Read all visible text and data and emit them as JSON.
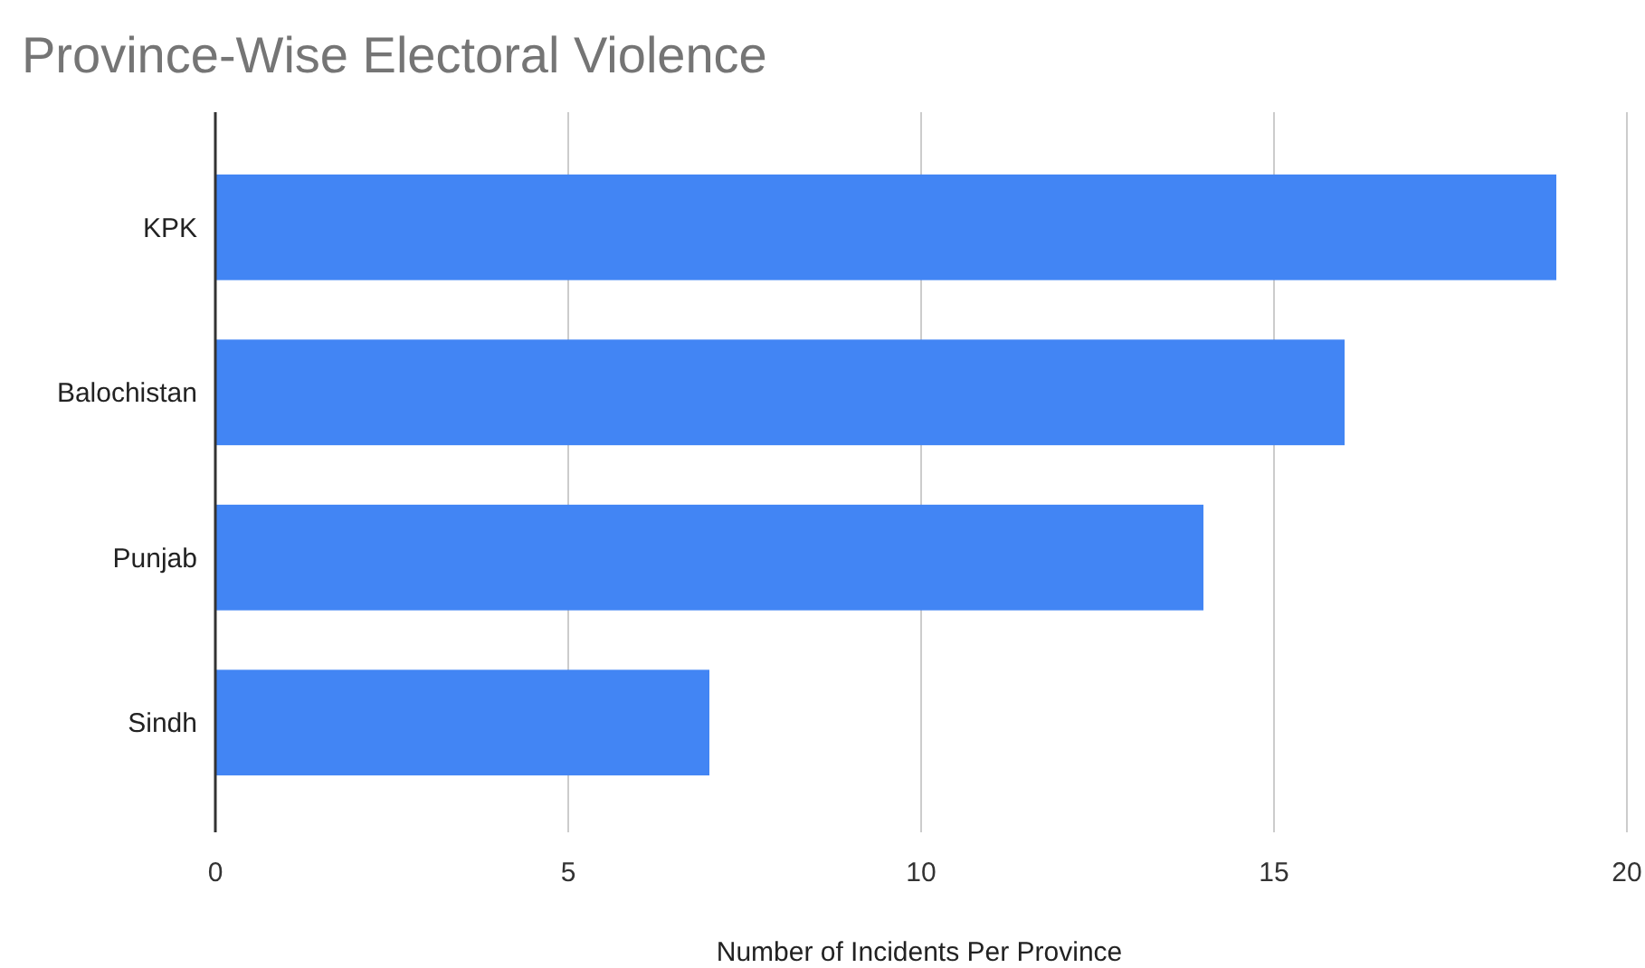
{
  "chart_data": {
    "type": "bar",
    "orientation": "horizontal",
    "title": "Province-Wise Electoral Violence",
    "xlabel": "Number of Incidents Per Province",
    "categories": [
      "KPK",
      "Balochistan",
      "Punjab",
      "Sindh"
    ],
    "values": [
      19,
      16,
      14,
      7
    ],
    "color": "#4285f4",
    "xlim": [
      0,
      20
    ],
    "xticks": [
      0,
      5,
      10,
      15,
      20
    ],
    "grid": "x"
  }
}
